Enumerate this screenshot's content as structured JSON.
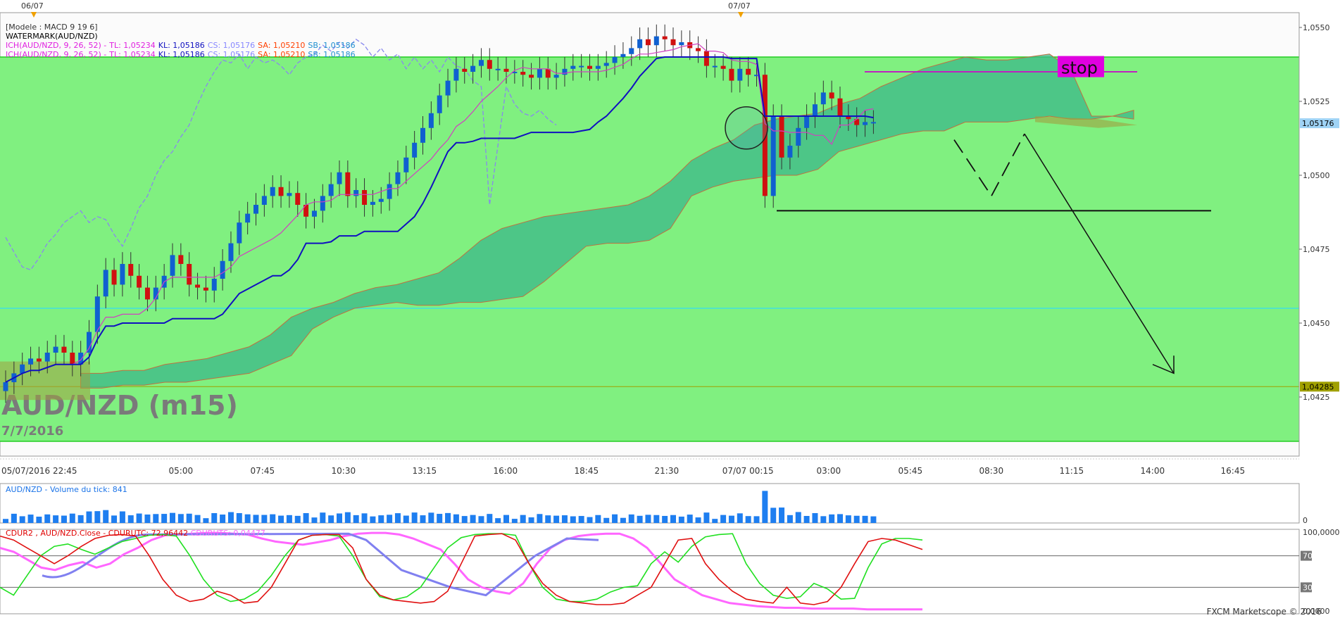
{
  "chart_data": {
    "type": "candlestick",
    "title": "AUD/NZD (m15)",
    "subtitle": "7/7/2016",
    "price_ylim": [
      1.0405,
      1.0555
    ],
    "y_ticks": [
      "1,0550",
      "1,0525",
      "1,0500",
      "1,0475",
      "1,0450",
      "1,0425"
    ],
    "price_label_current": "1,05176",
    "price_label_level": "1,04285",
    "x_ticks": [
      "05/07/2016 22:45",
      "05:00",
      "07:45",
      "10:30",
      "13:15",
      "16:00",
      "18:45",
      "21:30",
      "07/07 00:15",
      "03:00",
      "05:45",
      "08:30",
      "11:15",
      "14:00",
      "16:45"
    ],
    "top_markers": [
      "06/07",
      "07/07"
    ],
    "legend_lines": [
      {
        "text": "[Modele : MACD 9 19 6]",
        "color": "#333333"
      },
      {
        "text": "WATERMARK(AUD/NZD)",
        "color": "#000000"
      }
    ],
    "ichimoku_legend": [
      [
        {
          "t": "ICH(AUD/NZD, 9, 26, 52) -",
          "c": "#e020e0"
        },
        {
          "t": "TL: 1,05234",
          "c": "#e020e0"
        },
        {
          "t": "KL: 1,05186",
          "c": "#1010c0"
        },
        {
          "t": "CS: 1,05176",
          "c": "#8888ff"
        },
        {
          "t": "SA: 1,05210",
          "c": "#ff4000"
        },
        {
          "t": "SB: 1,05186",
          "c": "#2090d0"
        }
      ],
      [
        {
          "t": "ICH(AUD/NZD, 9, 26, 52) -",
          "c": "#e020e0"
        },
        {
          "t": "TL: 1,05234",
          "c": "#e020e0"
        },
        {
          "t": "KL: 1,05186",
          "c": "#1010c0"
        },
        {
          "t": "CS: 1,05176",
          "c": "#8888ff"
        },
        {
          "t": "SA: 1,05210",
          "c": "#ff4000"
        },
        {
          "t": "SB: 1,05186",
          "c": "#2090d0"
        }
      ]
    ],
    "annotations": {
      "stop_label": "stop"
    },
    "close_series": [
      1.043,
      1.0433,
      1.0436,
      1.0438,
      1.0437,
      1.044,
      1.0442,
      1.044,
      1.0436,
      1.044,
      1.0447,
      1.0459,
      1.0468,
      1.0463,
      1.047,
      1.0466,
      1.0462,
      1.0458,
      1.0462,
      1.0466,
      1.0473,
      1.047,
      1.0463,
      1.0462,
      1.0461,
      1.0465,
      1.0471,
      1.0477,
      1.0484,
      1.0487,
      1.049,
      1.0493,
      1.0496,
      1.0493,
      1.0494,
      1.049,
      1.0486,
      1.0488,
      1.0493,
      1.0497,
      1.0501,
      1.0493,
      1.0495,
      1.049,
      1.0491,
      1.0492,
      1.0497,
      1.0501,
      1.0506,
      1.0511,
      1.0516,
      1.0521,
      1.0527,
      1.0532,
      1.0536,
      1.0535,
      1.0537,
      1.0539,
      1.0536,
      1.0536,
      1.0535,
      1.0535,
      1.0534,
      1.0533,
      1.0536,
      1.0533,
      1.0534,
      1.0536,
      1.0537,
      1.0537,
      1.0536,
      1.0537,
      1.0538,
      1.054,
      1.0541,
      1.0543,
      1.0546,
      1.0544,
      1.0547,
      1.0546,
      1.0544,
      1.0545,
      1.0543,
      1.0542,
      1.0537,
      1.0537,
      1.0536,
      1.0532,
      1.0536,
      1.0534,
      1.0534,
      1.0493,
      1.052,
      1.0506,
      1.051,
      1.0516,
      1.052,
      1.0524,
      1.0528,
      1.0526,
      1.052,
      1.0519,
      1.0517,
      1.0518,
      1.0518
    ],
    "volume": {
      "title": "AUD/NZD - Volume du tick: 841",
      "ylim": [
        0,
        1
      ],
      "zero_label": "0"
    },
    "oscillator": {
      "title_parts": [
        {
          "t": "CDUR2 , AUD/NZD.Close -",
          "c": "#e00000"
        },
        {
          "t": "CDURUTC: 72,96442",
          "c": "#e00000"
        },
        {
          "t": "CDURUTS: 0,04477",
          "c": "#ff66ff"
        }
      ],
      "ylim": [
        0,
        100
      ],
      "y_labels": [
        "100,0000",
        "70",
        "30",
        "0,0000"
      ]
    },
    "footer": "FXCM Marketscope © 2016"
  }
}
